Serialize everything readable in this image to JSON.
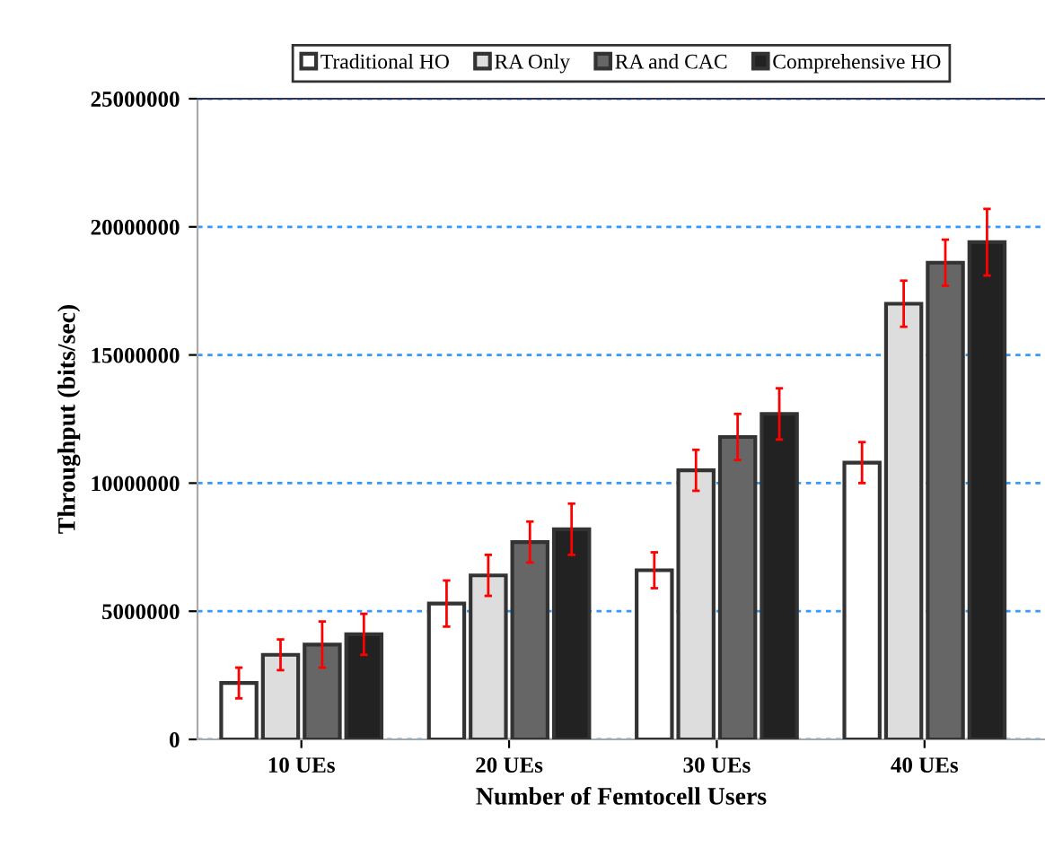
{
  "chart_data": {
    "type": "bar",
    "xlabel": "Number of Femtocell Users",
    "ylabel": "Throughput (bits/sec)",
    "categories": [
      "10 UEs",
      "20 UEs",
      "30 UEs",
      "40 UEs"
    ],
    "series": [
      {
        "name": "Traditional HO",
        "color": "#ffffff",
        "values": [
          2200000,
          5300000,
          6600000,
          10800000
        ],
        "errors": [
          600000,
          900000,
          700000,
          800000
        ]
      },
      {
        "name": "RA Only",
        "color": "#dddddd",
        "values": [
          3300000,
          6400000,
          10500000,
          17000000
        ],
        "errors": [
          600000,
          800000,
          800000,
          900000
        ]
      },
      {
        "name": "RA and CAC",
        "color": "#666666",
        "values": [
          3700000,
          7700000,
          11800000,
          18600000
        ],
        "errors": [
          900000,
          800000,
          900000,
          900000
        ]
      },
      {
        "name": "Comprehensive HO",
        "color": "#222222",
        "values": [
          4100000,
          8200000,
          12700000,
          19400000
        ],
        "errors": [
          800000,
          1000000,
          1000000,
          1300000
        ]
      }
    ],
    "ylim": [
      0,
      25000000
    ],
    "yticks": [
      0,
      5000000,
      10000000,
      15000000,
      20000000,
      25000000
    ],
    "grid": "y",
    "legend": "top"
  }
}
